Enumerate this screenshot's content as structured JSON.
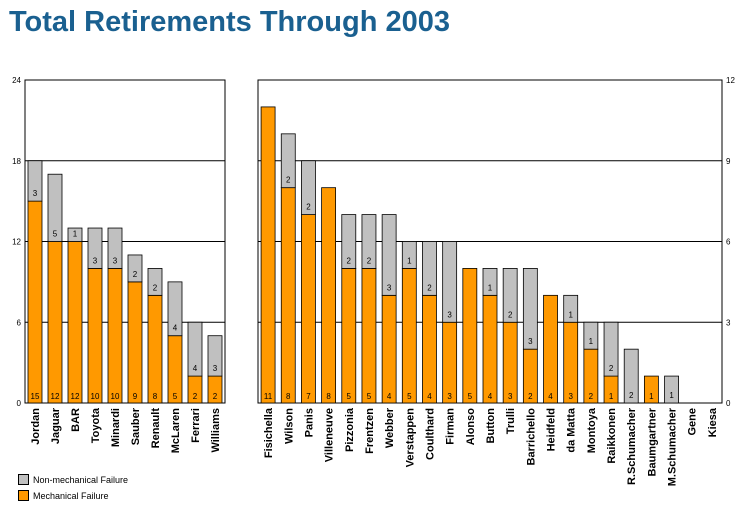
{
  "title": "Total Retirements Through 2003",
  "colors": {
    "mechanical": "#ff9900",
    "non_mechanical": "#c0c0c0"
  },
  "legend": {
    "non_mechanical": "Non-mechanical Failure",
    "mechanical": "Mechanical Failure"
  },
  "chart_data": [
    {
      "type": "bar",
      "stacked": true,
      "categories": [
        "Jordan",
        "Jaguar",
        "BAR",
        "Toyota",
        "Minardi",
        "Sauber",
        "Renault",
        "McLaren",
        "Ferrari",
        "Williams"
      ],
      "series": [
        {
          "name": "Mechanical Failure",
          "values": [
            15,
            12,
            12,
            10,
            10,
            9,
            8,
            5,
            2,
            2
          ]
        },
        {
          "name": "Non-mechanical Failure",
          "values": [
            3,
            5,
            1,
            3,
            3,
            2,
            2,
            4,
            4,
            3
          ]
        }
      ],
      "ylim": [
        0,
        24
      ],
      "yticks": [
        "0",
        "6",
        "12",
        "18",
        "24"
      ],
      "grid": true
    },
    {
      "type": "bar",
      "stacked": true,
      "categories": [
        "Fisichella",
        "Wilson",
        "Panis",
        "Villeneuve",
        "Pizzonia",
        "Frentzen",
        "Webber",
        "Verstappen",
        "Coulthard",
        "Firman",
        "Alonso",
        "Button",
        "Trulli",
        "Barrichello",
        "Heidfeld",
        "da Matta",
        "Montoya",
        "Raikkonen",
        "R.Schumacher",
        "Baumgartner",
        "M.Schumacher",
        "Gene",
        "Kiesa"
      ],
      "series": [
        {
          "name": "Mechanical Failure",
          "values": [
            11,
            8,
            7,
            8,
            5,
            5,
            4,
            5,
            4,
            3,
            5,
            4,
            3,
            2,
            4,
            3,
            2,
            1,
            0,
            1,
            0,
            0,
            0
          ]
        },
        {
          "name": "Non-mechanical Failure",
          "values": [
            0,
            2,
            2,
            0,
            2,
            2,
            3,
            1,
            2,
            3,
            0,
            1,
            2,
            3,
            0,
            1,
            1,
            2,
            2,
            0,
            1,
            0,
            0
          ]
        }
      ],
      "ylim": [
        0,
        12
      ],
      "yticks": [
        "0",
        "3",
        "6",
        "9",
        "12"
      ],
      "grid": true
    }
  ]
}
